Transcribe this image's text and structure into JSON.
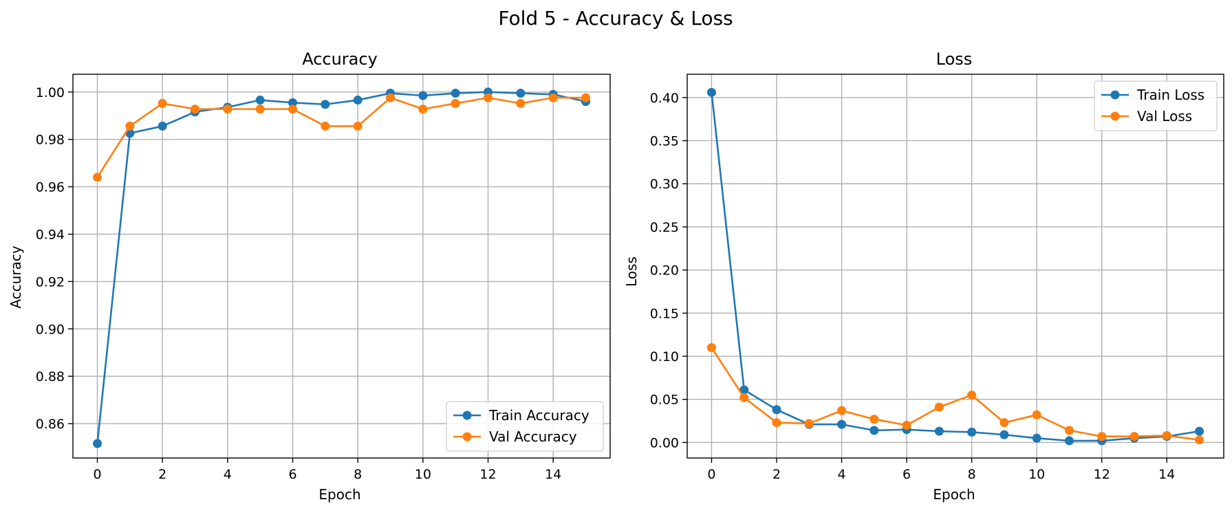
{
  "figure": {
    "title": "Fold 5 - Accuracy & Loss"
  },
  "chart_data": [
    {
      "type": "line",
      "title": "Accuracy",
      "xlabel": "Epoch",
      "ylabel": "Accuracy",
      "xlim": [
        -0.75,
        15.75
      ],
      "ylim": [
        0.8455,
        1.0075
      ],
      "xticks": [
        0,
        2,
        4,
        6,
        8,
        10,
        12,
        14
      ],
      "yticks": [
        0.86,
        0.88,
        0.9,
        0.92,
        0.94,
        0.96,
        0.98,
        1.0
      ],
      "ytick_labels": [
        "0.86",
        "0.88",
        "0.90",
        "0.92",
        "0.94",
        "0.96",
        "0.98",
        "1.00"
      ],
      "grid": true,
      "legend_position": "lower-right",
      "x": [
        0,
        1,
        2,
        3,
        4,
        5,
        6,
        7,
        8,
        9,
        10,
        11,
        12,
        13,
        14,
        15
      ],
      "series": [
        {
          "name": "Train Accuracy",
          "color": "#1f77b4",
          "values": [
            0.8516,
            0.9826,
            0.9856,
            0.9916,
            0.9936,
            0.9966,
            0.9955,
            0.9948,
            0.9966,
            0.9995,
            0.9985,
            0.9995,
            1.0,
            0.9995,
            0.999,
            0.996
          ]
        },
        {
          "name": "Val Accuracy",
          "color": "#ff7f0e",
          "values": [
            0.964,
            0.9856,
            0.9952,
            0.9928,
            0.9928,
            0.9928,
            0.9928,
            0.9856,
            0.9856,
            0.9976,
            0.9928,
            0.9952,
            0.9976,
            0.9952,
            0.9976,
            0.9976
          ]
        }
      ]
    },
    {
      "type": "line",
      "title": "Loss",
      "xlabel": "Epoch",
      "ylabel": "Loss",
      "xlim": [
        -0.75,
        15.75
      ],
      "ylim": [
        -0.018,
        0.427
      ],
      "xticks": [
        0,
        2,
        4,
        6,
        8,
        10,
        12,
        14
      ],
      "yticks": [
        0.0,
        0.05,
        0.1,
        0.15,
        0.2,
        0.25,
        0.3,
        0.35,
        0.4
      ],
      "ytick_labels": [
        "0.00",
        "0.05",
        "0.10",
        "0.15",
        "0.20",
        "0.25",
        "0.30",
        "0.35",
        "0.40"
      ],
      "grid": true,
      "legend_position": "upper-right",
      "x": [
        0,
        1,
        2,
        3,
        4,
        5,
        6,
        7,
        8,
        9,
        10,
        11,
        12,
        13,
        14,
        15
      ],
      "series": [
        {
          "name": "Train Loss",
          "color": "#1f77b4",
          "values": [
            0.406,
            0.061,
            0.038,
            0.021,
            0.021,
            0.014,
            0.015,
            0.013,
            0.012,
            0.009,
            0.005,
            0.002,
            0.002,
            0.005,
            0.007,
            0.013
          ]
        },
        {
          "name": "Val Loss",
          "color": "#ff7f0e",
          "values": [
            0.11,
            0.052,
            0.023,
            0.022,
            0.037,
            0.027,
            0.02,
            0.041,
            0.055,
            0.023,
            0.032,
            0.014,
            0.007,
            0.007,
            0.008,
            0.003
          ]
        }
      ]
    }
  ]
}
